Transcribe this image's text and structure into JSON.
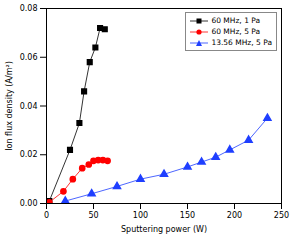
{
  "chart_data": {
    "type": "line",
    "x_label": "Sputtering power (W)",
    "y_label": "Ion flux density (A/m²)",
    "xlim": [
      0,
      250
    ],
    "xticks": [
      0,
      50,
      100,
      150,
      200,
      250
    ],
    "ylim": [
      0,
      0.08
    ],
    "yticks": [
      {
        "value": 0,
        "label": "0.00"
      },
      {
        "value": 0.02,
        "label": "0.02"
      },
      {
        "value": 0.04,
        "label": "0.04"
      },
      {
        "value": 0.06,
        "label": "0.06"
      },
      {
        "value": 0.08,
        "label": "0.08"
      }
    ],
    "legend": "upper right",
    "grid": false,
    "series": [
      {
        "name": "60 MHz, 1 Pa",
        "color": "#000000",
        "marker": "square",
        "line_style": "solid",
        "x": [
          0,
          3,
          25,
          35,
          40,
          46,
          52,
          57,
          62
        ],
        "values": [
          0,
          0.001,
          0.022,
          0.033,
          0.046,
          0.058,
          0.064,
          0.072,
          0.0715
        ]
      },
      {
        "name": "60 MHz, 5 Pa",
        "color": "#ff0000",
        "marker": "circle",
        "line_style": "solid",
        "x": [
          0,
          3,
          18,
          28,
          38,
          45,
          50,
          55,
          60,
          65
        ],
        "values": [
          0,
          0.0005,
          0.005,
          0.01,
          0.0145,
          0.016,
          0.0175,
          0.0178,
          0.0178,
          0.0175
        ]
      },
      {
        "name": "13.56 MHz, 5 Pa",
        "color": "#1f3fff",
        "marker": "triangle",
        "line_style": "solid",
        "x": [
          20,
          48,
          75,
          100,
          125,
          150,
          165,
          180,
          195,
          215,
          235
        ],
        "values": [
          0.001,
          0.004,
          0.007,
          0.01,
          0.012,
          0.015,
          0.017,
          0.019,
          0.022,
          0.026,
          0.035
        ]
      }
    ]
  }
}
